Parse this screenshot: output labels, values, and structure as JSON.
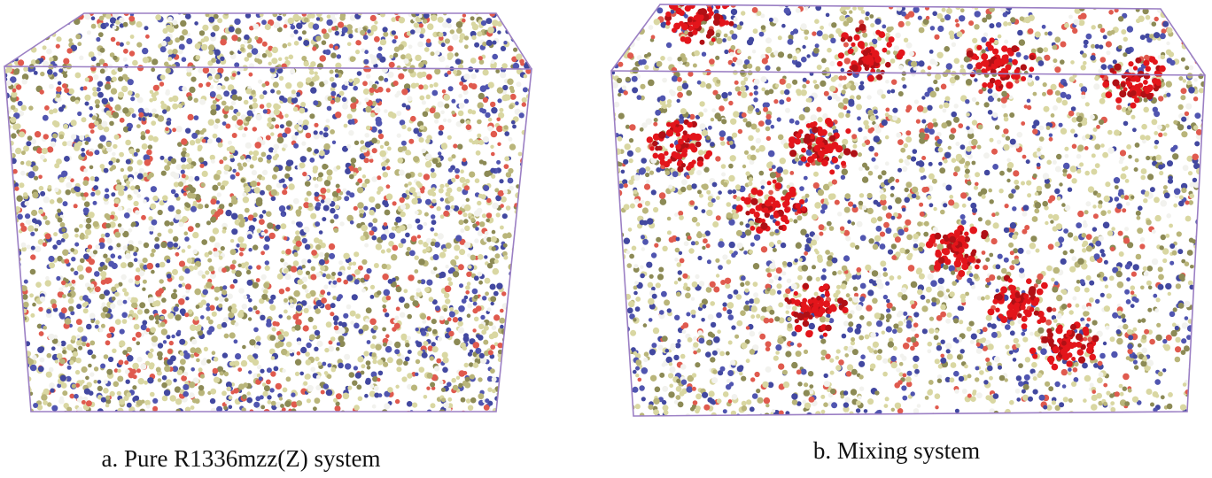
{
  "panels": [
    {
      "caption": "a. Pure R1336mzz(Z) system"
    },
    {
      "caption": "b. Mixing system"
    }
  ]
}
